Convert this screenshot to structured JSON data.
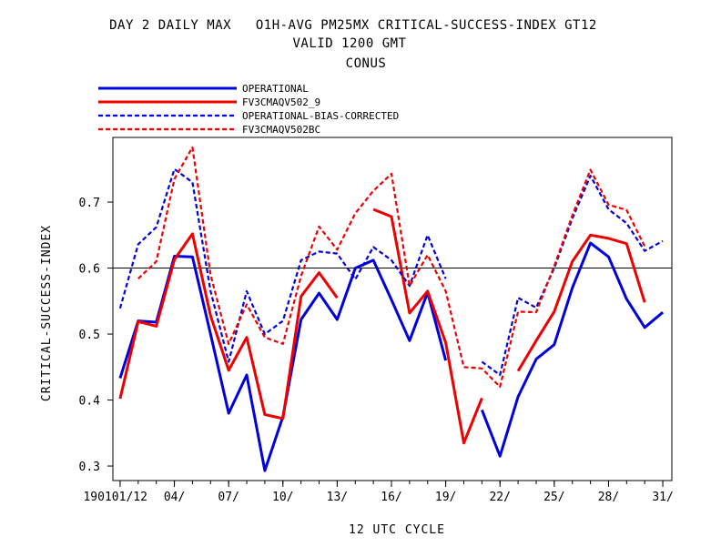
{
  "chart_data": {
    "type": "line",
    "title": "DAY 2 DAILY MAX   O1H-AVG PM25MX CRITICAL-SUCCESS-INDEX GT12",
    "subtitle": "VALID 1200 GMT",
    "region": "CONUS",
    "xlabel": "12 UTC CYCLE",
    "ylabel": "CRITICAL-SUCCESS-INDEX",
    "x": [
      1,
      2,
      3,
      4,
      5,
      6,
      7,
      8,
      9,
      10,
      11,
      12,
      13,
      14,
      15,
      16,
      17,
      18,
      19,
      20,
      21,
      22,
      23,
      24,
      25,
      26,
      27,
      28,
      29,
      30,
      31
    ],
    "x_tick_positions": [
      1,
      4,
      7,
      10,
      13,
      16,
      19,
      22,
      25,
      28,
      31
    ],
    "x_tick_labels": [
      "190101/12",
      "04/",
      "07/",
      "10/",
      "13/",
      "16/",
      "19/",
      "22/",
      "25/",
      "28/",
      "31/"
    ],
    "y_tick_values": [
      0.3,
      0.4,
      0.5,
      0.6,
      0.7
    ],
    "y_tick_labels": [
      "0.3",
      "0.4",
      "0.5",
      "0.6",
      "0.7"
    ],
    "ylim": [
      0.278,
      0.798
    ],
    "xlim": [
      0.6,
      31.5
    ],
    "reference_line": 0.6,
    "legend_position": "top-left",
    "series": [
      {
        "name": "OPERATIONAL",
        "color": "#0000dd",
        "dashed": false,
        "values": [
          0.433,
          0.52,
          0.518,
          0.618,
          0.617,
          0.5,
          0.38,
          0.438,
          0.293,
          0.375,
          0.522,
          0.562,
          0.522,
          0.6,
          0.612,
          0.552,
          0.49,
          0.563,
          0.46,
          null,
          0.385,
          0.315,
          0.405,
          0.462,
          0.484,
          0.57,
          0.638,
          0.617,
          0.553,
          0.51,
          0.533
        ]
      },
      {
        "name": "FV3CMAQV502_9",
        "color": "#ee0000",
        "dashed": false,
        "values": [
          0.402,
          0.519,
          0.512,
          0.613,
          0.652,
          0.528,
          0.445,
          0.495,
          0.378,
          0.372,
          0.557,
          0.593,
          0.555,
          null,
          0.689,
          0.678,
          0.532,
          0.565,
          0.487,
          0.335,
          0.403,
          null,
          0.444,
          0.49,
          0.534,
          0.61,
          0.65,
          0.645,
          0.637,
          0.548,
          null
        ]
      },
      {
        "name": "OPERATIONAL-BIAS-CORRECTED",
        "color": "#0000dd",
        "dashed": true,
        "values": [
          0.539,
          0.636,
          0.662,
          0.75,
          0.73,
          0.565,
          0.458,
          0.565,
          0.5,
          0.52,
          0.612,
          0.625,
          0.622,
          0.583,
          0.632,
          0.612,
          0.573,
          0.65,
          0.584,
          null,
          0.458,
          0.438,
          0.555,
          0.54,
          0.6,
          0.675,
          0.74,
          0.689,
          0.668,
          0.626,
          0.641
        ]
      },
      {
        "name": "FV3CMAQV502BC",
        "color": "#ee0000",
        "dashed": true,
        "values": [
          null,
          0.584,
          0.61,
          0.735,
          0.783,
          0.59,
          0.485,
          0.545,
          0.495,
          0.485,
          0.588,
          0.663,
          0.628,
          0.683,
          0.717,
          0.743,
          0.573,
          0.62,
          0.565,
          0.45,
          0.448,
          0.42,
          0.534,
          0.533,
          0.603,
          0.68,
          0.749,
          0.696,
          0.688,
          0.633,
          null
        ]
      }
    ]
  }
}
